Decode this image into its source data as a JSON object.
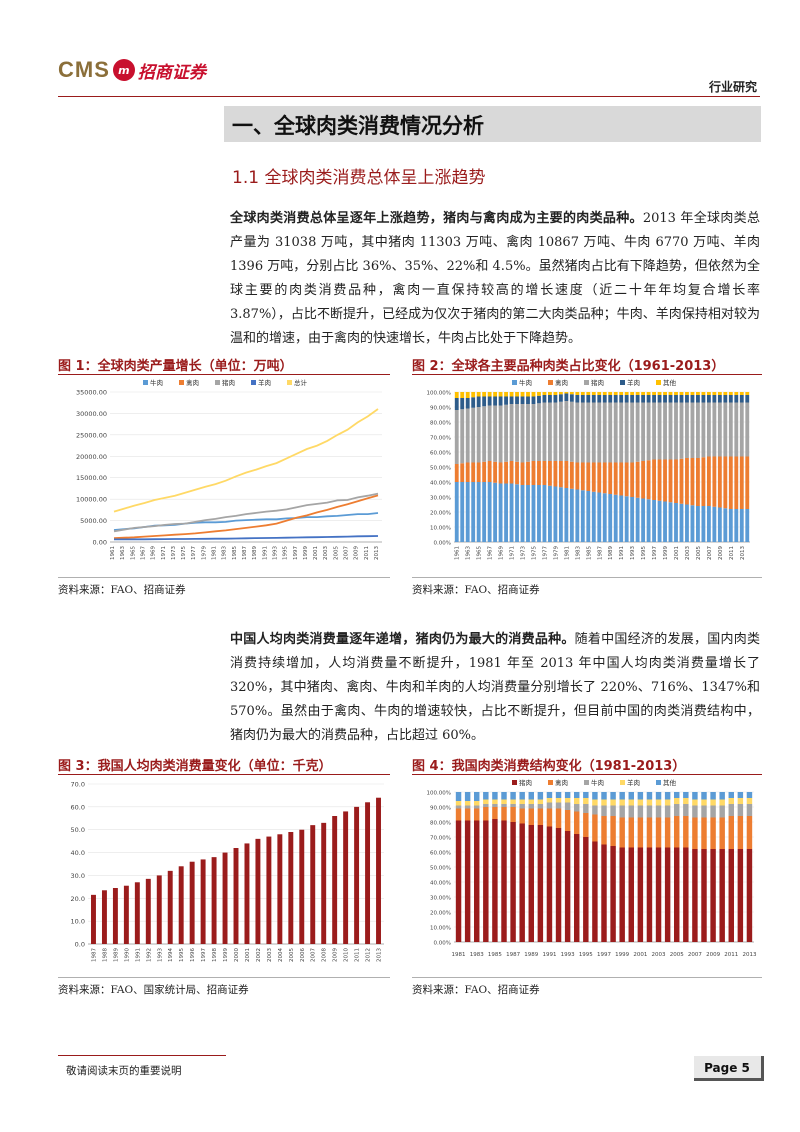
{
  "header": {
    "logo_cms": "CMS",
    "logo_mark": "m",
    "logo_name": "招商证券",
    "category": "行业研究"
  },
  "section": {
    "title": "一、全球肉类消费情况分析",
    "subtitle": "1.1 全球肉类消费总体呈上涨趋势"
  },
  "para1": {
    "lead": "全球肉类消费总体呈逐年上涨趋势，猪肉与禽肉成为主要的肉类品种。",
    "body": "2013 年全球肉类总产量为 31038 万吨，其中猪肉 11303 万吨、禽肉 10867 万吨、牛肉 6770 万吨、羊肉 1396 万吨，分别占比 36%、35%、22%和 4.5%。虽然猪肉占比有下降趋势，但依然为全球主要的肉类消费品种，禽肉一直保持较高的增长速度（近二十年年均复合增长率 3.87%），占比不断提升，已经成为仅次于猪肉的第二大肉类品种；牛肉、羊肉保持相对较为温和的增速，由于禽肉的快速增长，牛肉占比处于下降趋势。"
  },
  "para2": {
    "lead": "中国人均肉类消费量逐年递增，猪肉仍为最大的消费品种。",
    "body": "随着中国经济的发展，国内肉类消费持续增加，人均消费量不断提升，1981 年至 2013 年中国人均肉类消费量增长了 320%，其中猪肉、禽肉、牛肉和羊肉的人均消费量分别增长了 220%、716%、1347%和 570%。虽然由于禽肉、牛肉的增速较快，占比不断提升，但目前中国的肉类消费结构中，猪肉仍为最大的消费品种，占比超过 60%。"
  },
  "figures": {
    "fig1_title": "图 1：全球肉类产量增长（单位：万吨）",
    "fig2_title": "图 2：全球各主要品种肉类占比变化（1961-2013）",
    "fig3_title": "图 3：我国人均肉类消费量变化（单位：千克）",
    "fig4_title": "图 4：我国肉类消费结构变化（1981-2013）",
    "source1": "资料来源：FAO、招商证券",
    "source2": "资料来源：FAO、招商证券",
    "source3": "资料来源：FAO、国家统计局、招商证券",
    "source4": "资料来源：FAO、招商证券"
  },
  "footer": {
    "disclaimer": "敬请阅读末页的重要说明",
    "page": "Page 5"
  },
  "colors": {
    "accent": "#9a1b1b",
    "beef": "#5b9bd5",
    "poultry": "#ed7d31",
    "pork": "#a5a5a5",
    "mutton": "#4472c4",
    "total": "#ffd966",
    "other": "#ffc000",
    "pork_dark": "#9b1c1c"
  },
  "chart_data": [
    {
      "id": "fig1",
      "type": "line",
      "title": "全球肉类产量增长（单位：万吨）",
      "x": [
        1961,
        1963,
        1965,
        1967,
        1969,
        1971,
        1973,
        1975,
        1977,
        1979,
        1981,
        1983,
        1985,
        1987,
        1989,
        1991,
        1993,
        1995,
        1997,
        1999,
        2001,
        2003,
        2005,
        2007,
        2009,
        2011,
        2013
      ],
      "x_tick_labels": [
        "1961",
        "1963",
        "1965",
        "1967",
        "1969",
        "1971",
        "1973",
        "1975",
        "1977",
        "1979",
        "1981",
        "1983",
        "1985",
        "1987",
        "1989",
        "1991",
        "1993",
        "1995",
        "1997",
        "1999",
        "2001",
        "2003",
        "2005",
        "2007",
        "2009",
        "2011",
        "2013"
      ],
      "ylim": [
        0,
        35000
      ],
      "y_ticks": [
        "0.00",
        "5000.00",
        "10000.00",
        "15000.00",
        "20000.00",
        "25000.00",
        "30000.00",
        "35000.00"
      ],
      "legend": "top",
      "series": [
        {
          "name": "牛肉",
          "color_key": "beef",
          "values": [
            2800,
            3000,
            3200,
            3500,
            3800,
            3900,
            4000,
            4300,
            4500,
            4600,
            4600,
            4700,
            5000,
            5100,
            5200,
            5300,
            5300,
            5500,
            5600,
            5800,
            5800,
            6000,
            6100,
            6300,
            6500,
            6500,
            6770
          ]
        },
        {
          "name": "禽肉",
          "color_key": "poultry",
          "values": [
            900,
            1000,
            1100,
            1250,
            1400,
            1550,
            1700,
            1850,
            2000,
            2250,
            2500,
            2700,
            3000,
            3300,
            3600,
            3900,
            4300,
            5000,
            5700,
            6200,
            6900,
            7500,
            8200,
            8800,
            9500,
            10200,
            10867
          ]
        },
        {
          "name": "猪肉",
          "color_key": "pork",
          "values": [
            2500,
            2900,
            3300,
            3500,
            3700,
            4000,
            4200,
            4300,
            4700,
            5100,
            5400,
            5800,
            6100,
            6500,
            6800,
            7100,
            7300,
            7600,
            8100,
            8600,
            8900,
            9200,
            9700,
            9800,
            10400,
            10800,
            11303
          ]
        },
        {
          "name": "羊肉",
          "color_key": "mutton",
          "values": [
            600,
            610,
            620,
            640,
            660,
            680,
            690,
            700,
            720,
            740,
            760,
            780,
            820,
            860,
            900,
            930,
            950,
            1000,
            1050,
            1100,
            1130,
            1170,
            1220,
            1270,
            1320,
            1350,
            1396
          ]
        },
        {
          "name": "总计",
          "color_key": "total",
          "values": [
            7100,
            7800,
            8500,
            9100,
            9800,
            10300,
            10800,
            11500,
            12200,
            12900,
            13500,
            14300,
            15300,
            16200,
            16900,
            17700,
            18400,
            19500,
            20600,
            21700,
            22500,
            23600,
            25000,
            26200,
            27900,
            29300,
            31038
          ]
        }
      ]
    },
    {
      "id": "fig2",
      "type": "bar",
      "stacked": true,
      "title": "全球各主要品种肉类占比变化（1961-2013）",
      "x_tick_labels": [
        "1961",
        "1963",
        "1965",
        "1967",
        "1969",
        "1971",
        "1973",
        "1975",
        "1977",
        "1979",
        "1981",
        "1983",
        "1985",
        "1987",
        "1989",
        "1991",
        "1993",
        "1995",
        "1997",
        "1999",
        "2001",
        "2003",
        "2005",
        "2007",
        "2009",
        "2011",
        "2013"
      ],
      "ylim": [
        0,
        100
      ],
      "y_ticks": [
        "0.00%",
        "10.00%",
        "20.00%",
        "30.00%",
        "40.00%",
        "50.00%",
        "60.00%",
        "70.00%",
        "80.00%",
        "90.00%",
        "100.00%"
      ],
      "legend": "top",
      "series": [
        {
          "name": "牛肉",
          "color_key": "beef",
          "values": [
            40,
            40,
            40,
            40,
            39,
            39,
            38,
            38,
            38,
            37,
            36,
            35,
            34,
            33,
            32,
            31,
            30,
            29,
            28,
            27,
            26,
            25,
            24,
            24,
            23,
            22,
            22
          ]
        },
        {
          "name": "禽肉",
          "color_key": "poultry",
          "values": [
            12,
            13,
            13,
            14,
            14,
            15,
            15,
            16,
            16,
            17,
            18,
            18,
            19,
            20,
            21,
            22,
            23,
            25,
            27,
            28,
            29,
            31,
            32,
            33,
            34,
            35,
            35
          ]
        },
        {
          "name": "猪肉",
          "color_key": "pork",
          "values": [
            36,
            36,
            37,
            37,
            38,
            38,
            39,
            38,
            39,
            39,
            40,
            40,
            40,
            40,
            40,
            40,
            40,
            39,
            38,
            38,
            38,
            37,
            37,
            36,
            36,
            36,
            36
          ]
        },
        {
          "name": "羊肉",
          "color_key": "beef_dark",
          "values": [
            8,
            7,
            7,
            6,
            6,
            5,
            5,
            5,
            5,
            5,
            5,
            5,
            5,
            5,
            5,
            5,
            5,
            5,
            5,
            5,
            5,
            5,
            5,
            5,
            5,
            5,
            5
          ]
        },
        {
          "name": "其他",
          "color_key": "other",
          "values": [
            4,
            4,
            3,
            3,
            3,
            3,
            3,
            3,
            2,
            2,
            1,
            2,
            2,
            2,
            2,
            2,
            2,
            2,
            2,
            2,
            2,
            2,
            2,
            2,
            2,
            2,
            2
          ]
        }
      ]
    },
    {
      "id": "fig3",
      "type": "bar",
      "title": "我国人均肉类消费量变化（单位：千克）",
      "categories": [
        "1987",
        "1988",
        "1989",
        "1990",
        "1991",
        "1992",
        "1993",
        "1994",
        "1995",
        "1996",
        "1997",
        "1998",
        "1999",
        "2000",
        "2001",
        "2002",
        "2003",
        "2004",
        "2005",
        "2006",
        "2007",
        "2008",
        "2009",
        "2010",
        "2011",
        "2012",
        "2013"
      ],
      "values": [
        21.5,
        23.5,
        24.5,
        25.5,
        27,
        28.5,
        30,
        32,
        34,
        36,
        37,
        38,
        40,
        42,
        44,
        46,
        47,
        48,
        49,
        50,
        52,
        53,
        56,
        58,
        60,
        62,
        64
      ],
      "ylim": [
        0,
        70
      ],
      "y_ticks": [
        "0.0",
        "10.0",
        "20.0",
        "30.0",
        "40.0",
        "50.0",
        "60.0",
        "70.0"
      ]
    },
    {
      "id": "fig4",
      "type": "bar",
      "stacked": true,
      "title": "我国肉类消费结构变化（1981-2013）",
      "x_tick_labels": [
        "1981",
        "1983",
        "1985",
        "1987",
        "1989",
        "1991",
        "1993",
        "1995",
        "1997",
        "1999",
        "2001",
        "2003",
        "2005",
        "2007",
        "2009",
        "2011",
        "2013"
      ],
      "ylim": [
        0,
        100
      ],
      "y_ticks": [
        "0.00%",
        "10.00%",
        "20.00%",
        "30.00%",
        "40.00%",
        "50.00%",
        "60.00%",
        "70.00%",
        "80.00%",
        "90.00%",
        "100.00%"
      ],
      "legend": "top",
      "series": [
        {
          "name": "猪肉",
          "color_key": "pork_dark",
          "values": [
            81,
            81,
            81,
            81,
            82,
            81,
            80,
            79,
            78,
            78,
            77,
            76,
            74,
            72,
            70,
            67,
            65,
            64,
            63,
            63,
            63,
            63,
            63,
            63,
            63,
            63,
            62,
            62,
            62,
            62,
            62,
            62,
            62
          ]
        },
        {
          "name": "禽肉",
          "color_key": "poultry",
          "values": [
            8,
            8,
            8,
            9,
            8,
            9,
            10,
            10,
            11,
            11,
            12,
            13,
            14,
            15,
            16,
            18,
            19,
            20,
            20,
            20,
            20,
            20,
            20,
            20,
            21,
            21,
            21,
            21,
            21,
            21,
            22,
            22,
            22
          ]
        },
        {
          "name": "牛肉",
          "color_key": "pork",
          "values": [
            2,
            2,
            2,
            2,
            2,
            2,
            2,
            3,
            3,
            3,
            4,
            4,
            5,
            5,
            6,
            6,
            7,
            7,
            8,
            8,
            8,
            8,
            8,
            8,
            8,
            8,
            8,
            8,
            8,
            8,
            8,
            8,
            8
          ]
        },
        {
          "name": "羊肉",
          "color_key": "total",
          "values": [
            3,
            3,
            3,
            3,
            3,
            3,
            3,
            3,
            3,
            3,
            3,
            3,
            3,
            4,
            4,
            4,
            4,
            4,
            4,
            4,
            4,
            4,
            4,
            4,
            4,
            4,
            4,
            4,
            4,
            4,
            4,
            4,
            4
          ]
        },
        {
          "name": "其他",
          "color_key": "beef",
          "values": [
            6,
            6,
            6,
            5,
            5,
            5,
            5,
            5,
            5,
            5,
            4,
            4,
            4,
            4,
            4,
            5,
            5,
            5,
            5,
            5,
            5,
            5,
            5,
            5,
            4,
            4,
            5,
            5,
            5,
            5,
            4,
            4,
            4
          ]
        }
      ]
    }
  ]
}
